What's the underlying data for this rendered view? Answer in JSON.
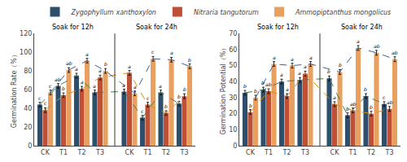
{
  "chart_data": [
    {
      "type": "bar",
      "ylabel": "Germination Rate（%）",
      "categories": [
        "CK",
        "T1",
        "T2",
        "T3",
        "CK",
        "T1",
        "T2",
        "T3"
      ],
      "sections": [
        "Soak for 12h",
        "Soak for 24h"
      ],
      "ylim": [
        0,
        120
      ],
      "yticks": [
        0,
        20,
        40,
        60,
        80,
        100,
        120
      ],
      "grid": false,
      "legend": "top",
      "series": [
        {
          "name": "Zygophyllum xanthoxylon",
          "color": "#2e4f6b",
          "values": [
            44,
            64,
            75,
            57,
            58,
            30,
            57,
            45
          ],
          "errors": [
            2.5,
            2.5,
            2.5,
            2.5,
            2.5,
            2.5,
            2.5,
            2.5
          ],
          "letters": [
            "c",
            "ab",
            "a",
            "a",
            "a",
            "c",
            "a",
            "b"
          ]
        },
        {
          "type": "line",
          "line_style": "dashed",
          "color": "#4a7c50",
          "values": [
            44,
            64,
            75,
            57,
            58,
            30,
            57,
            45
          ]
        },
        {
          "name": "Nitraria tangutorum",
          "color": "#bf5035",
          "values": [
            38,
            54,
            61,
            73,
            78,
            44,
            35,
            53
          ],
          "errors": [
            2.5,
            2.5,
            2.5,
            2.5,
            2.5,
            2.5,
            2.5,
            2.5
          ],
          "letters": [
            "c",
            "b",
            "a",
            "a",
            "a",
            "c",
            "b",
            "b"
          ]
        },
        {
          "type": "line",
          "line_style": "dashed",
          "color": "#d4900a",
          "values": [
            38,
            54,
            61,
            73,
            78,
            44,
            35,
            53
          ]
        },
        {
          "name": "Ammopiptanthus mongolicus",
          "color": "#e8a060",
          "values": [
            57,
            81,
            91,
            80,
            56,
            93,
            92,
            85
          ],
          "errors": [
            2.5,
            2.5,
            2.5,
            2.5,
            2.5,
            2.5,
            2.5,
            2.5
          ],
          "letters": [
            "c",
            "ab",
            "a",
            "b",
            "a",
            "c",
            "a",
            "b"
          ]
        },
        {
          "type": "line",
          "line_style": "dashed",
          "color": "#3a5fa0",
          "values": [
            57,
            81,
            91,
            80,
            56,
            93,
            92,
            85
          ]
        }
      ]
    },
    {
      "type": "bar",
      "ylabel": "Germination Potential（%）",
      "categories": [
        "CK",
        "T1",
        "T2",
        "T3",
        "CK",
        "T1",
        "T2",
        "T3"
      ],
      "sections": [
        "Soak for 12h",
        "Soak for 24h"
      ],
      "ylim": [
        0,
        70
      ],
      "yticks": [
        0,
        10,
        20,
        30,
        40,
        50,
        60,
        70
      ],
      "grid": false,
      "legend": "top",
      "series": [
        {
          "name": "Zygophyllum xanthoxylon",
          "color": "#2e4f6b",
          "values": [
            33,
            35,
            40,
            41,
            42,
            19,
            31,
            26
          ],
          "errors": [
            1.5,
            1.5,
            1.5,
            1.5,
            1.5,
            1.5,
            1.5,
            1.5
          ],
          "letters": [
            "b",
            "b",
            "a",
            "a",
            "b",
            "b",
            "b",
            "c"
          ]
        },
        {
          "type": "line",
          "line_style": "dashed",
          "color": "#4a7c50",
          "values": [
            33,
            35,
            40,
            41,
            42,
            19,
            31,
            26
          ]
        },
        {
          "name": "Nitraria tangutorum",
          "color": "#bf5035",
          "values": [
            21,
            34,
            31,
            45,
            26,
            22,
            20,
            23
          ],
          "errors": [
            1.5,
            1.5,
            1.5,
            1.5,
            1.5,
            1.5,
            1.5,
            1.5
          ],
          "letters": [
            "b",
            "ab",
            "a",
            "a",
            "a",
            "ab",
            "b",
            "ab"
          ]
        },
        {
          "type": "line",
          "line_style": "dashed",
          "color": "#d4900a",
          "values": [
            21,
            34,
            31,
            45,
            26,
            22,
            20,
            23
          ]
        },
        {
          "name": "Ammopiptanthus mongolicus",
          "color": "#e8a060",
          "values": [
            30,
            51,
            50,
            51,
            46,
            61,
            58,
            54
          ],
          "errors": [
            1.5,
            1.5,
            1.5,
            1.5,
            1.5,
            1.5,
            1.5,
            1.5
          ],
          "letters": [
            "b",
            "a",
            "a",
            "a",
            "b",
            "a",
            "ab",
            "ab"
          ]
        },
        {
          "type": "line",
          "line_style": "dashed",
          "color": "#3a5fa0",
          "values": [
            30,
            51,
            50,
            51,
            46,
            61,
            58,
            54
          ]
        }
      ]
    }
  ]
}
